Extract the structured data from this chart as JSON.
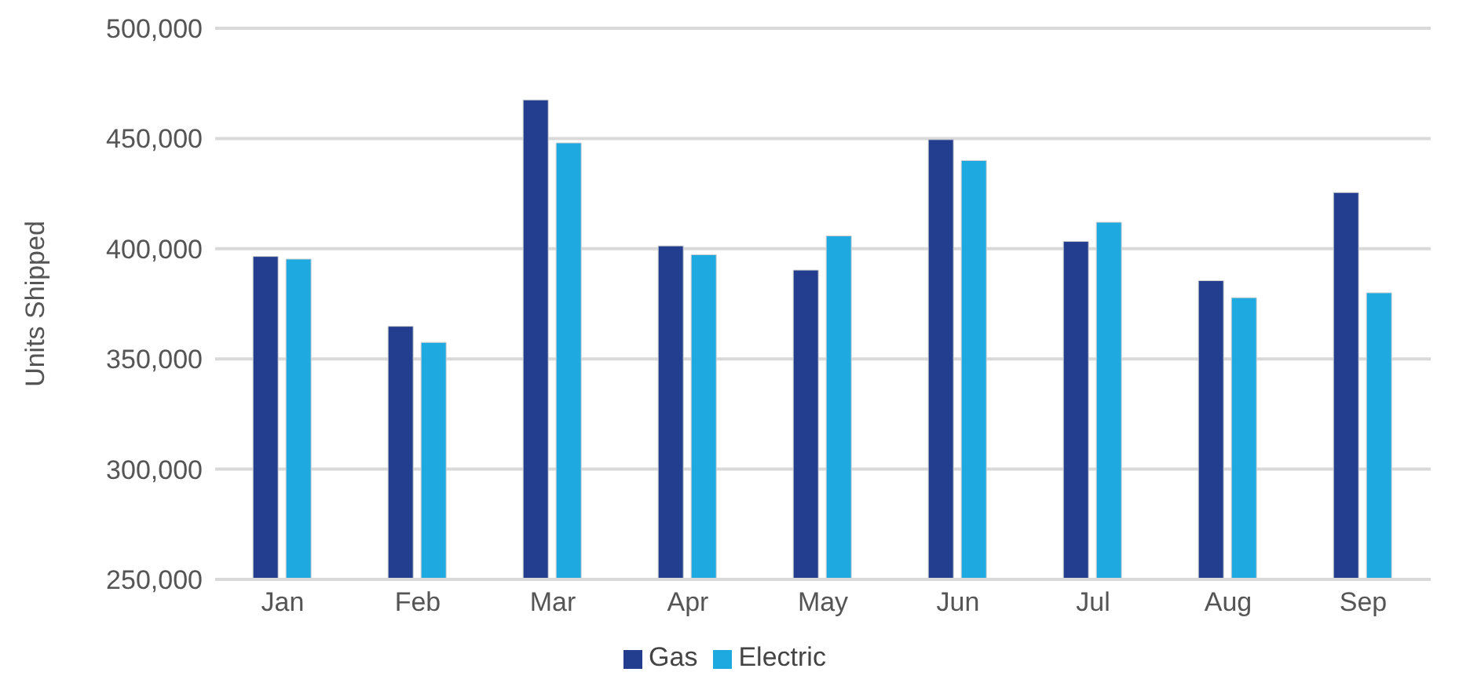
{
  "chart_data": {
    "type": "bar",
    "ylabel": "Units Shipped",
    "categories": [
      "Jan",
      "Feb",
      "Mar",
      "Apr",
      "May",
      "Jun",
      "Jul",
      "Aug",
      "Sep"
    ],
    "series": [
      {
        "name": "Gas",
        "color": "#233e8f",
        "values": [
          396500,
          364800,
          467500,
          401300,
          390300,
          449500,
          403300,
          385500,
          425500
        ]
      },
      {
        "name": "Electric",
        "color": "#1fa9e1",
        "values": [
          395300,
          357500,
          448000,
          397300,
          405800,
          440000,
          412000,
          377800,
          380000
        ]
      }
    ],
    "ylim": [
      250000,
      500000
    ],
    "yticks": [
      {
        "value": 250000,
        "label": "250,000"
      },
      {
        "value": 300000,
        "label": "300,000"
      },
      {
        "value": 350000,
        "label": "350,000"
      },
      {
        "value": 400000,
        "label": "400,000"
      },
      {
        "value": 450000,
        "label": "450,000"
      },
      {
        "value": 500000,
        "label": "500,000"
      }
    ],
    "grid": "y",
    "legend": "bottom"
  }
}
